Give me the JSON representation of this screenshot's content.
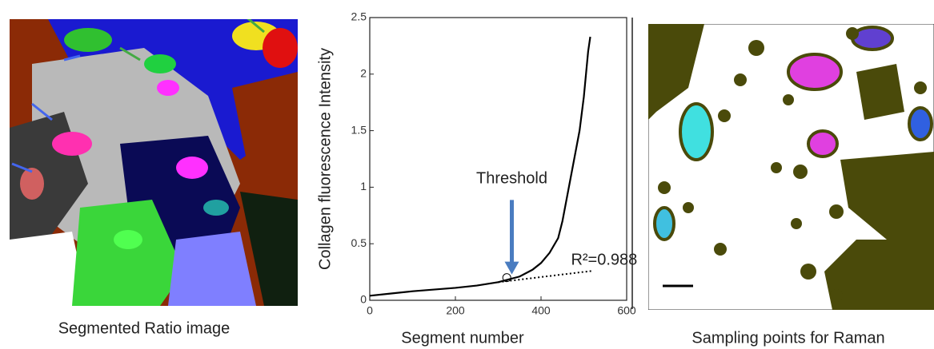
{
  "chart_data": {
    "type": "line",
    "xlabel": "Segment number",
    "ylabel": "Collagen fluorescence Intensity",
    "xlim": [
      0,
      600
    ],
    "xticks": [
      0,
      200,
      400,
      600
    ],
    "ylim": [
      0,
      2.5
    ],
    "yticks": [
      0,
      0.5,
      1,
      1.5,
      2,
      2.5
    ],
    "series": [
      {
        "color": "#000000",
        "style": "solid",
        "x": [
          0,
          50,
          100,
          150,
          200,
          250,
          300,
          350,
          380,
          400,
          420,
          440,
          450,
          460,
          470,
          480,
          490,
          500,
          505,
          510,
          515
        ],
        "values": [
          0.04,
          0.06,
          0.08,
          0.095,
          0.11,
          0.13,
          0.16,
          0.21,
          0.27,
          0.33,
          0.42,
          0.55,
          0.7,
          0.9,
          1.1,
          1.3,
          1.5,
          1.8,
          2.0,
          2.2,
          2.33
        ]
      },
      {
        "color": "#000000",
        "style": "dotted",
        "x": [
          300,
          520
        ],
        "values": [
          0.16,
          0.26
        ]
      },
      {
        "color": "#000000",
        "style": "marker",
        "x": [
          320
        ],
        "values": [
          0.2
        ]
      }
    ],
    "annotations": [
      {
        "text": "Threshold",
        "x": 300,
        "y": 1.0
      },
      {
        "text": "R²=0.988",
        "x": 470,
        "y": 0.28
      }
    ]
  },
  "captions": {
    "left": "Segmented Ratio image",
    "right": "Sampling points for Raman"
  }
}
